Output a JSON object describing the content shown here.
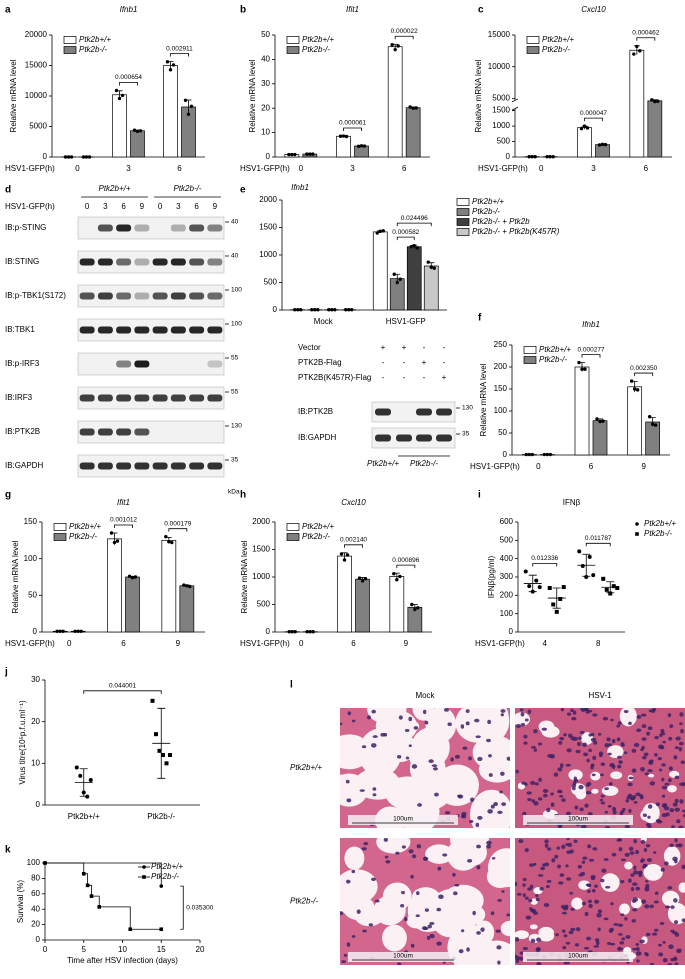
{
  "chart_data": [
    {
      "panel": "a",
      "type": "bar",
      "title": "Ifnb1",
      "y_label": "Relative mRNA level",
      "x_label": "HSV1-GFP(h)",
      "categories": [
        "0",
        "3",
        "6"
      ],
      "series": [
        {
          "name": "Ptk2b+/+",
          "color": "#ffffff",
          "values": [
            5,
            10200,
            15000
          ],
          "errors": [
            0,
            650,
            650
          ],
          "points": [
            [
              5,
              5,
              5
            ],
            [
              10900,
              9600,
              10100
            ],
            [
              15600,
              14300,
              15100
            ]
          ]
        },
        {
          "name": "Ptk2b-/-",
          "color": "#808080",
          "values": [
            5,
            4300,
            8200
          ],
          "errors": [
            0,
            100,
            1150
          ],
          "points": [
            [
              5,
              5,
              5
            ],
            [
              4400,
              4200,
              4300
            ],
            [
              9300,
              7000,
              8300
            ]
          ]
        }
      ],
      "ylim": [
        0,
        20000
      ],
      "yticks": [
        0,
        5000,
        10000,
        15000,
        20000
      ],
      "pvalues": [
        null,
        "0.000654",
        "0.002911"
      ],
      "legend": "upper-left"
    },
    {
      "panel": "b",
      "type": "bar",
      "title": "Ifit1",
      "y_label": "Relative mRNA level",
      "x_label": "HSV1-GFP(h)",
      "categories": [
        "0",
        "3",
        "6"
      ],
      "series": [
        {
          "name": "Ptk2b+/+",
          "color": "#ffffff",
          "values": [
            1,
            8.5,
            45.2
          ],
          "errors": [
            0,
            0.1,
            1
          ],
          "points": [
            [
              1,
              1,
              1
            ],
            [
              8.5,
              8.6,
              8.4
            ],
            [
              46,
              44,
              45.5
            ]
          ]
        },
        {
          "name": "Ptk2b-/-",
          "color": "#808080",
          "values": [
            1.2,
            4.5,
            20.2
          ],
          "errors": [
            0.1,
            0.2,
            0.3
          ],
          "points": [
            [
              1.2,
              1.2,
              1.2
            ],
            [
              4.4,
              4.6,
              4.5
            ],
            [
              20.5,
              20,
              20.1
            ]
          ]
        }
      ],
      "ylim": [
        0,
        50
      ],
      "yticks": [
        0,
        10,
        20,
        30,
        40,
        50
      ],
      "pvalues": [
        null,
        "0.000061",
        "0.000022"
      ],
      "legend": "upper-left"
    },
    {
      "panel": "c",
      "type": "bar",
      "title": "Cxcl10",
      "y_label": "Relative mRNA level",
      "x_label": "HSV1-GFP(h)",
      "categories": [
        "0",
        "3",
        "6"
      ],
      "series": [
        {
          "name": "Ptk2b+/+",
          "color": "#ffffff",
          "values": [
            10,
            950,
            12600
          ],
          "errors": [
            0,
            50,
            700
          ],
          "points": [
            [
              10,
              10,
              10
            ],
            [
              920,
              1000,
              940
            ],
            [
              12000,
              13200,
              12500
            ]
          ]
        },
        {
          "name": "Ptk2b-/-",
          "color": "#808080",
          "values": [
            10,
            400,
            4300
          ],
          "errors": [
            0,
            15,
            300
          ],
          "points": [
            [
              10,
              10,
              10
            ],
            [
              390,
              410,
              400
            ],
            [
              4600,
              4100,
              4200
            ]
          ]
        }
      ],
      "ylim": [
        0,
        15000
      ],
      "yticks": [
        0,
        500,
        1000,
        1500,
        5000,
        10000,
        15000
      ],
      "broken_axis": true,
      "pvalues": [
        null,
        "0.000047",
        "0.000462"
      ],
      "legend": "upper-left"
    },
    {
      "panel": "e",
      "type": "bar",
      "title": "Ifnb1",
      "categories": [
        "Mock",
        "HSV1-GFP"
      ],
      "series": [
        {
          "name": "Ptk2b+/+",
          "color": "#ffffff",
          "values": [
            5,
            1420
          ],
          "errors": [
            0,
            20
          ],
          "points": [
            [
              5,
              5,
              5
            ],
            [
              1400,
              1430,
              1440
            ]
          ]
        },
        {
          "name": "Ptk2b-/-",
          "color": "#808080",
          "values": [
            5,
            570
          ],
          "errors": [
            0,
            80
          ],
          "points": [
            [
              5,
              5,
              5
            ],
            [
              650,
              500,
              560
            ]
          ]
        },
        {
          "name": "Ptk2b-/- + Ptk2b",
          "color": "#404040",
          "values": [
            5,
            1150
          ],
          "errors": [
            0,
            30
          ],
          "points": [
            [
              5,
              5,
              5
            ],
            [
              1150,
              1170,
              1130
            ]
          ]
        },
        {
          "name": "Ptk2b-/- + Ptk2b(K457R)",
          "color": "#c8c8c8",
          "values": [
            5,
            800
          ],
          "errors": [
            0,
            60
          ],
          "points": [
            [
              5,
              5,
              5
            ],
            [
              870,
              780,
              760
            ]
          ]
        }
      ],
      "ylim": [
        0,
        2000
      ],
      "yticks": [
        0,
        500,
        1000,
        1500,
        2000
      ],
      "pvalues": [
        null,
        [
          "0.000582",
          "0.024496"
        ]
      ],
      "legend": "outside-right"
    },
    {
      "panel": "f",
      "type": "bar",
      "title": "Ifnb1",
      "y_label": "Relative mRNA level",
      "x_label": "HSV1-GFP(h)",
      "categories": [
        "0",
        "6",
        "9"
      ],
      "series": [
        {
          "name": "Ptk2b+/+",
          "color": "#ffffff",
          "values": [
            1,
            200,
            155
          ],
          "errors": [
            0,
            10,
            12
          ],
          "points": [
            [
              1,
              1,
              1
            ],
            [
              210,
              195,
              195
            ],
            [
              168,
              150,
              148
            ]
          ]
        },
        {
          "name": "Ptk2b-/-",
          "color": "#808080",
          "values": [
            1,
            78,
            75
          ],
          "errors": [
            0,
            4,
            10
          ],
          "points": [
            [
              1,
              1,
              1
            ],
            [
              82,
              76,
              77
            ],
            [
              87,
              70,
              68
            ]
          ]
        }
      ],
      "ylim": [
        0,
        250
      ],
      "yticks": [
        0,
        50,
        100,
        150,
        200,
        250
      ],
      "pvalues": [
        null,
        "0.000277",
        "0.002350"
      ],
      "legend": "upper-left"
    },
    {
      "panel": "g",
      "type": "bar",
      "title": "Ifit1",
      "y_label": "Relative mRNA level",
      "x_label": "HSV1-GFP(h)",
      "categories": [
        "0",
        "6",
        "9"
      ],
      "series": [
        {
          "name": "Ptk2b+/+",
          "color": "#ffffff",
          "values": [
            1,
            127,
            125
          ],
          "errors": [
            0,
            8,
            4
          ],
          "points": [
            [
              1,
              1,
              1
            ],
            [
              135,
              122,
              124
            ],
            [
              130,
              123,
              122
            ]
          ]
        },
        {
          "name": "Ptk2b-/-",
          "color": "#808080",
          "values": [
            1,
            75,
            63
          ],
          "errors": [
            0,
            1,
            1
          ],
          "points": [
            [
              1,
              1,
              1
            ],
            [
              76,
              74,
              75
            ],
            [
              64,
              63,
              62
            ]
          ]
        }
      ],
      "ylim": [
        0,
        150
      ],
      "yticks": [
        0,
        50,
        100,
        150
      ],
      "pvalues": [
        null,
        "0.001012",
        "0.000179"
      ],
      "legend": "upper-left"
    },
    {
      "panel": "h",
      "type": "bar",
      "title": "Cxcl10",
      "y_label": "Relative mRNA level",
      "x_label": "HSV1-GFP(h)",
      "categories": [
        "0",
        "6",
        "9"
      ],
      "series": [
        {
          "name": "Ptk2b+/+",
          "color": "#ffffff",
          "values": [
            5,
            1380,
            1010
          ],
          "errors": [
            0,
            60,
            60
          ],
          "points": [
            [
              5,
              5,
              5
            ],
            [
              1420,
              1310,
              1400
            ],
            [
              1060,
              950,
              1010
            ]
          ]
        },
        {
          "name": "Ptk2b-/-",
          "color": "#808080",
          "values": [
            5,
            960,
            450
          ],
          "errors": [
            0,
            30,
            50
          ],
          "points": [
            [
              5,
              5,
              5
            ],
            [
              980,
              930,
              970
            ],
            [
              500,
              410,
              440
            ]
          ]
        }
      ],
      "ylim": [
        0,
        2000
      ],
      "yticks": [
        0,
        500,
        1000,
        1500,
        2000
      ],
      "pvalues": [
        null,
        "0.002140",
        "0.000896"
      ],
      "legend": "upper-left"
    },
    {
      "panel": "i",
      "type": "dot",
      "title": "IFNβ",
      "y_label": "IFNβ(pg/ml)",
      "x_label": "HSV1-GFP(h)",
      "categories": [
        "4",
        "8"
      ],
      "series": [
        {
          "name": "Ptk2b+/+",
          "marker": "circle",
          "color": "#000000",
          "values": [
            265,
            364
          ],
          "errors": [
            45,
            60
          ],
          "points": [
            [
              330,
              250,
              220,
              280,
              245
            ],
            [
              440,
              360,
              300,
              410,
              310
            ]
          ]
        },
        {
          "name": "Ptk2b-/-",
          "marker": "square",
          "color": "#000000",
          "values": [
            185,
            244
          ],
          "errors": [
            55,
            30
          ],
          "points": [
            [
              240,
              150,
              110,
              180,
              245
            ],
            [
              290,
              230,
              210,
              250,
              240
            ]
          ]
        }
      ],
      "ylim": [
        0,
        600
      ],
      "yticks": [
        0,
        100,
        200,
        300,
        400,
        500,
        600
      ],
      "pvalues": [
        "0.012336",
        "0.011787"
      ],
      "legend": "outside-right"
    },
    {
      "panel": "j",
      "type": "dot",
      "y_label": "Virus titre(10⁵p.f.u.ml⁻¹)",
      "categories": [
        "Ptk2b+/+",
        "Ptk2b-/-"
      ],
      "series": [
        {
          "markers": [
            "circle",
            "square"
          ],
          "color": "#000000",
          "values": [
            5.4,
            14.8
          ],
          "errors": [
            3.3,
            8.4
          ],
          "points": [
            [
              9,
              7,
              3,
              2,
              6
            ],
            [
              25,
              17,
              13,
              12,
              10,
              12
            ]
          ]
        }
      ],
      "ylim": [
        0,
        30
      ],
      "yticks": [
        0,
        10,
        20,
        30
      ],
      "pvalue": "0.044001"
    },
    {
      "panel": "k",
      "type": "survival",
      "y_label": "Survival (%)",
      "x_label": "Time after HSV infection (days)",
      "series": [
        {
          "name": "Ptk2b+/+",
          "marker": "circle",
          "color": "#000000",
          "x": [
            0,
            15
          ],
          "values": [
            100,
            70
          ]
        },
        {
          "name": "Ptk2b-/-",
          "marker": "square",
          "color": "#000000",
          "x": [
            0,
            5,
            5.5,
            6,
            7,
            11,
            15
          ],
          "values": [
            100,
            86,
            71,
            57,
            43,
            14,
            14
          ]
        }
      ],
      "xlim": [
        0,
        20
      ],
      "xticks": [
        0,
        5,
        10,
        15,
        20
      ],
      "ylim": [
        0,
        100
      ],
      "yticks": [
        0,
        20,
        40,
        60,
        80,
        100
      ],
      "pvalue": "0.035300",
      "legend": "upper-right"
    }
  ],
  "blot": {
    "panel": "d",
    "treatment": "HSV1-GFP(h)",
    "lanes": [
      "0",
      "3",
      "6",
      "9",
      "0",
      "3",
      "6",
      "9"
    ],
    "groups": [
      "Ptk2b+/+",
      "Ptk2b-/-"
    ],
    "rows": [
      {
        "label": "IB:p-STING",
        "marker": 40
      },
      {
        "label": "IB:STING",
        "marker": 40
      },
      {
        "label": "IB:p-TBK1(S172)",
        "marker": 100
      },
      {
        "label": "IB:TBK1",
        "marker": 100
      },
      {
        "label": "IB:p-IRF3",
        "marker": 55
      },
      {
        "label": "IB:IRF3",
        "marker": 55
      },
      {
        "label": "IB:PTK2B",
        "marker": 130
      },
      {
        "label": "IB:GAPDH",
        "marker": 35
      }
    ],
    "unit": "kDa"
  },
  "rescue": {
    "conditions": [
      {
        "label": "Vector",
        "marks": [
          "+",
          "+",
          "-",
          "-"
        ]
      },
      {
        "label": "PTK2B-Flag",
        "marks": [
          "-",
          "-",
          "+",
          "-"
        ]
      },
      {
        "label": "PTK2B(K457R)-Flag",
        "marks": [
          "-",
          "-",
          "-",
          "+"
        ]
      }
    ],
    "rows": [
      {
        "label": "IB:PTK2B",
        "marker": 130
      },
      {
        "label": "IB:GAPDH",
        "marker": 35
      }
    ],
    "groups": [
      "Ptk2b+/+",
      "Ptk2b-/-"
    ]
  },
  "histology": {
    "panel": "l",
    "columns": [
      "Mock",
      "HSV-1"
    ],
    "rows": [
      "Ptk2b+/+",
      "Ptk2b-/-"
    ],
    "scale_bar": "100um"
  }
}
